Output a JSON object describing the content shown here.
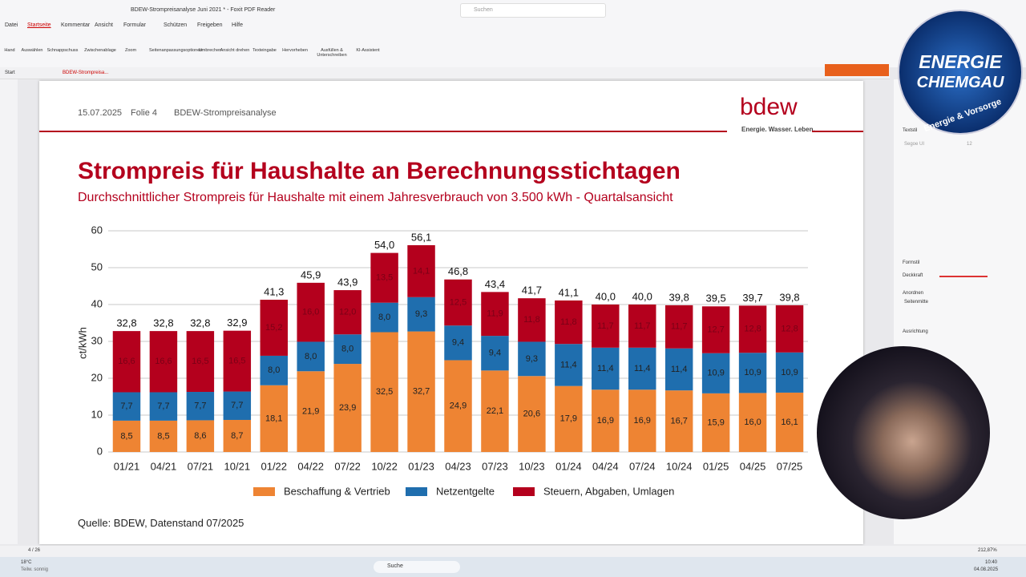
{
  "app": {
    "window_title": "BDEW-Strompreisanalyse Juni 2021 * - Foxit PDF Reader",
    "search": "Suchen",
    "menu": [
      "Datei",
      "Startseite",
      "Kommentar",
      "Ansicht",
      "Formular",
      "Schützen",
      "Freigeben",
      "Hilfe"
    ],
    "tools": [
      "Hand",
      "Auswählen",
      "Schnappschuss",
      "Zwischenablage",
      "Zoom",
      "Seitenanpassungsoptionen",
      "Umbrechen",
      "Ansicht drehen",
      "Texteingabe",
      "Hervorheben",
      "Ausfüllen & Unterschreiben",
      "KI-Assistent"
    ],
    "tabs": [
      "Start",
      "BDEW-Strompreisa..."
    ],
    "panel": [
      "Textstil",
      "Segoe UI",
      "12",
      "Formstil",
      "Deckkraft",
      "Anordnen",
      "Seitenmitte",
      "Ausrichtung"
    ],
    "page_indicator": "4 / 26",
    "zoom": "212,87%"
  },
  "document": {
    "date": "15.07.2025",
    "slide": "Folie 4",
    "header": "BDEW-Strompreisanalyse",
    "logo": "bdew",
    "slogan": "Energie. Wasser. Leben.",
    "source": "Quelle: BDEW, Datenstand 07/2025"
  },
  "chart_data": {
    "type": "bar",
    "stacked": true,
    "title": "Strompreis für Haushalte an Berechnungsstichtagen",
    "subtitle": "Durchschnittlicher Strompreis für Haushalte mit einem Jahresverbrauch von 3.500 kWh - Quartalsansicht",
    "ylabel": "ct/kWh",
    "ylim": [
      0,
      60
    ],
    "yticks": [
      0,
      10,
      20,
      30,
      40,
      50,
      60
    ],
    "grid": true,
    "legend": "bottom",
    "categories": [
      "01/21",
      "04/21",
      "07/21",
      "10/21",
      "01/22",
      "04/22",
      "07/22",
      "10/22",
      "01/23",
      "04/23",
      "07/23",
      "10/23",
      "01/24",
      "04/24",
      "07/24",
      "10/24",
      "01/25",
      "04/25",
      "07/25"
    ],
    "series": [
      {
        "name": "Beschaffung & Vertrieb",
        "color": "#ee8433",
        "values": [
          8.5,
          8.5,
          8.6,
          8.7,
          18.1,
          21.9,
          23.9,
          32.5,
          32.7,
          24.9,
          22.1,
          20.6,
          17.9,
          16.9,
          16.9,
          16.7,
          15.9,
          16.0,
          16.1
        ],
        "value_labels": [
          "8,5",
          "8,5",
          "8,6",
          "8,7",
          "18,1",
          "21,9",
          "23,9",
          "32,5",
          "32,7",
          "24,9",
          "22,1",
          "20,6",
          "17,9",
          "16,9",
          "16,9",
          "16,7",
          "15,9",
          "16,0",
          "16,1"
        ]
      },
      {
        "name": "Netzentgelte",
        "color": "#1f6eae",
        "values": [
          7.7,
          7.7,
          7.7,
          7.7,
          8.0,
          8.0,
          8.0,
          8.0,
          9.3,
          9.4,
          9.4,
          9.3,
          11.4,
          11.4,
          11.4,
          11.4,
          10.9,
          10.9,
          10.9
        ],
        "value_labels": [
          "7,7",
          "7,7",
          "7,7",
          "7,7",
          "8,0",
          "8,0",
          "8,0",
          "8,0",
          "9,3",
          "9,4",
          "9,4",
          "9,3",
          "11,4",
          "11,4",
          "11,4",
          "11,4",
          "10,9",
          "10,9",
          "10,9"
        ]
      },
      {
        "name": "Steuern, Abgaben, Umlagen",
        "color": "#b4001d",
        "values": [
          16.6,
          16.6,
          16.5,
          16.5,
          15.2,
          16.0,
          12.0,
          13.5,
          14.1,
          12.5,
          11.9,
          11.8,
          11.8,
          11.7,
          11.7,
          11.7,
          12.7,
          12.8,
          12.8
        ],
        "value_labels": [
          "16,6",
          "16,6",
          "16,5",
          "16,5",
          "15,2",
          "16,0",
          "12,0",
          "13,5",
          "14,1",
          "12,5",
          "11,9",
          "11,8",
          "11,8",
          "11,7",
          "11,7",
          "11,7",
          "12,7",
          "12,8",
          "12,8"
        ]
      }
    ],
    "totals": {
      "values": [
        32.8,
        32.8,
        32.8,
        32.9,
        41.3,
        45.9,
        43.9,
        54.0,
        56.1,
        46.8,
        43.4,
        41.7,
        41.1,
        40.0,
        40.0,
        39.8,
        39.5,
        39.7,
        39.8
      ],
      "value_labels": [
        "32,8",
        "32,8",
        "32,8",
        "32,9",
        "41,3",
        "45,9",
        "43,9",
        "54,0",
        "56,1",
        "46,8",
        "43,4",
        "41,7",
        "41,1",
        "40,0",
        "40,0",
        "39,8",
        "39,5",
        "39,7",
        "39,8"
      ]
    }
  },
  "overlay": {
    "brand_line1": "ENERGIE",
    "brand_line2": "CHIEMGAU",
    "brand_ring": "Energie & Vorsorge"
  },
  "taskbar": {
    "temperature": "18°C",
    "weather": "Teilw. sonnig",
    "search": "Suche",
    "time": "10:40",
    "date": "04.08.2025"
  }
}
